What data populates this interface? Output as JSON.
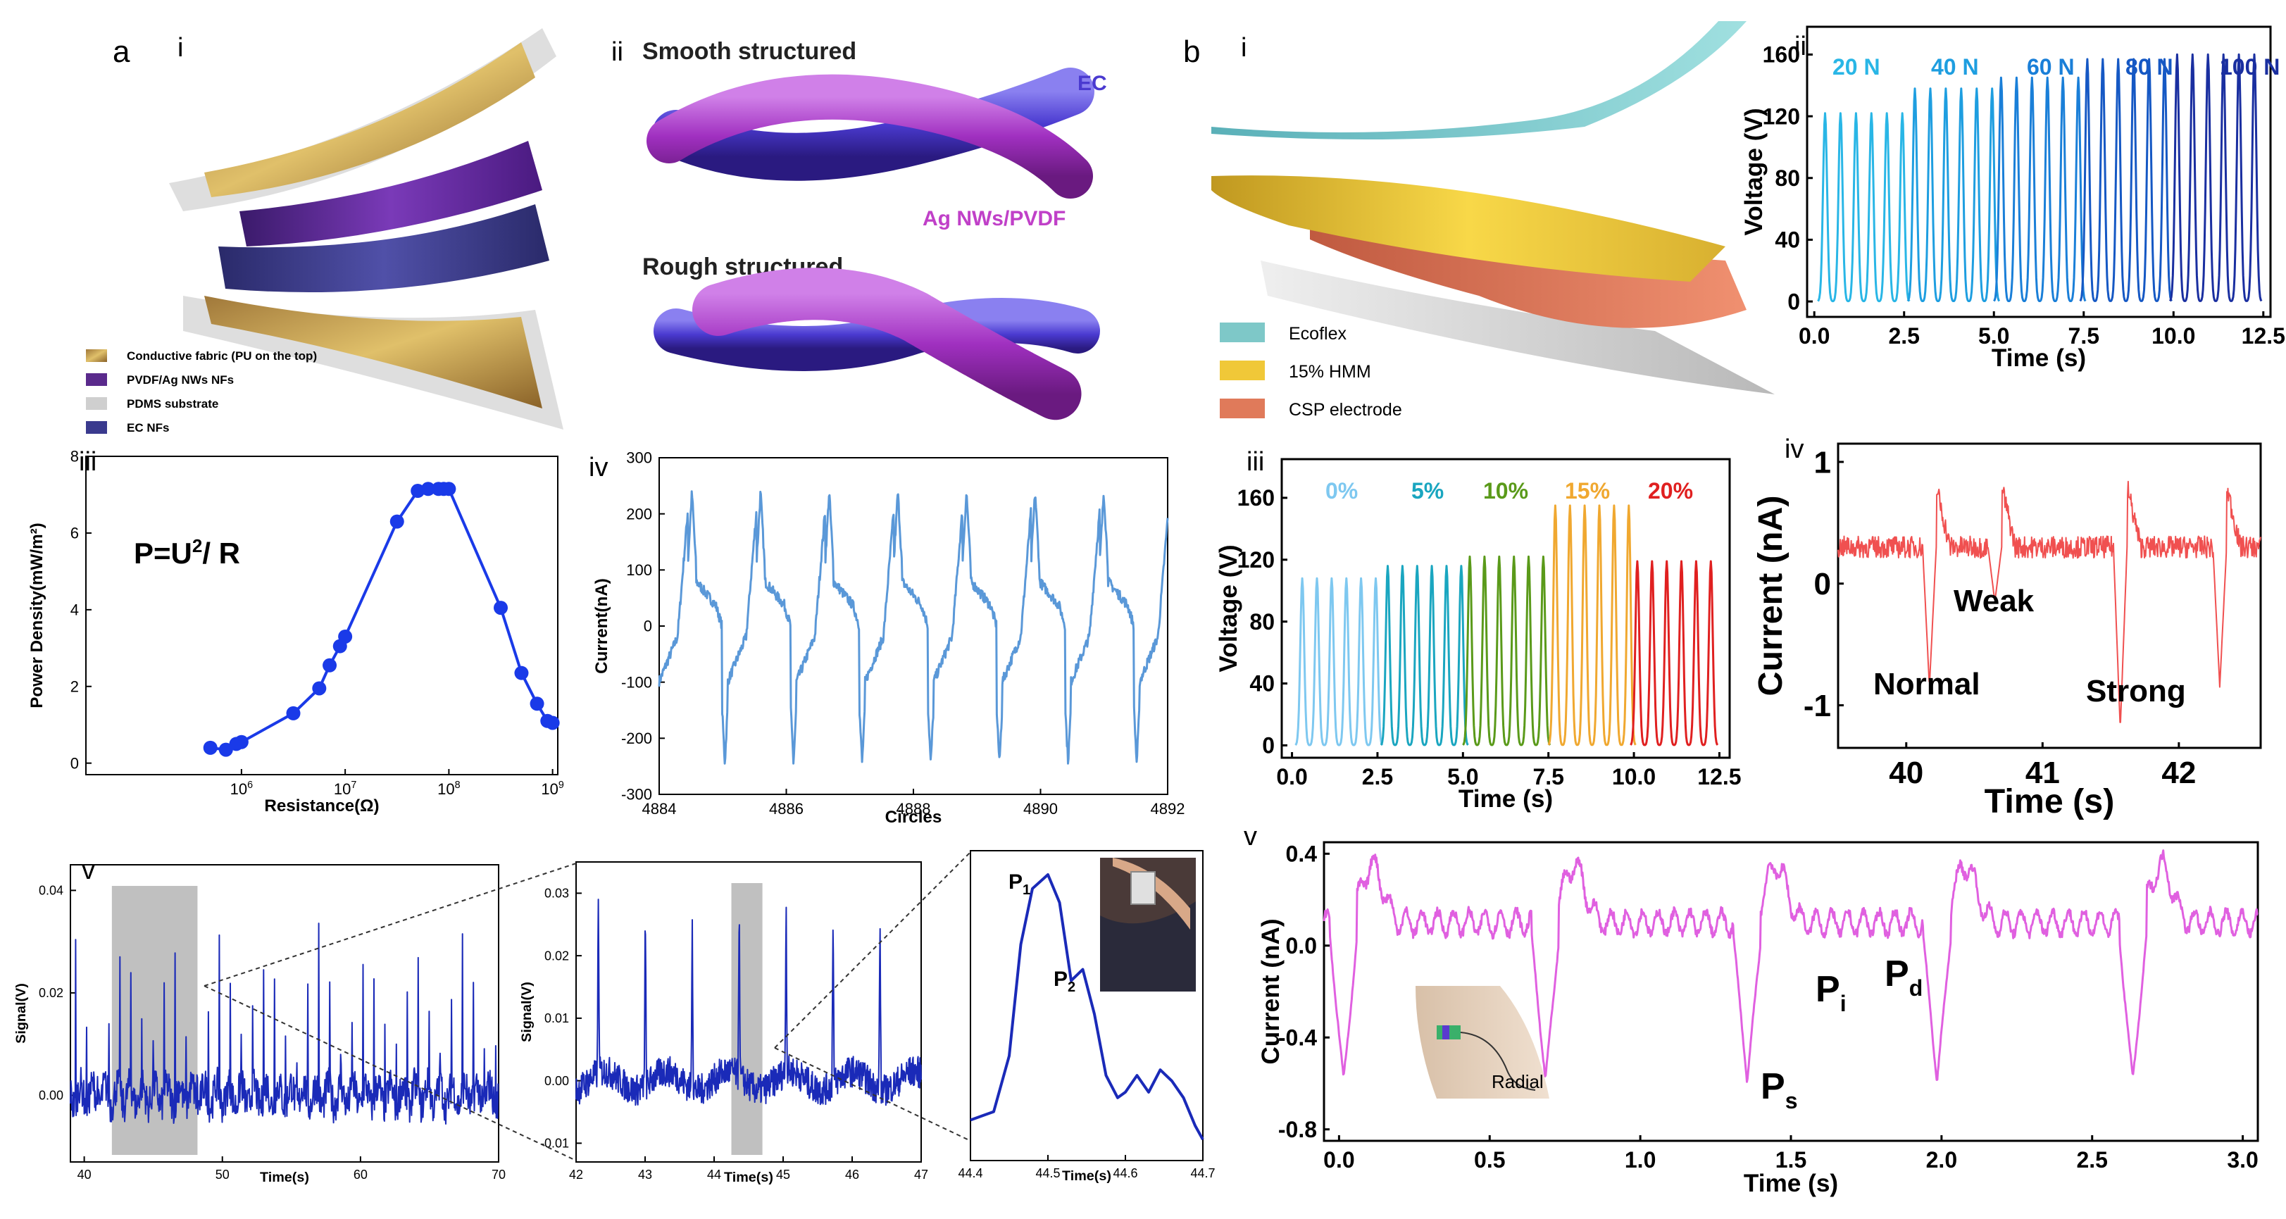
{
  "panel_a": {
    "letter": "a",
    "i": {
      "label": "i",
      "legend": [
        "Conductive fabric (PU on the top)",
        "PVDF/Ag NWs NFs",
        "PDMS substrate",
        "EC NFs"
      ],
      "colors": {
        "fabric": "#c99a3c",
        "pvdf": "#5a2a8c",
        "pdms": "#cfcfcf",
        "ec": "#3a3a8e"
      }
    },
    "ii": {
      "label": "ii",
      "smooth": "Smooth structured",
      "rough": "Rough structured",
      "ec": "EC",
      "agnw": "Ag NWs/PVDF",
      "colors": {
        "ec": "#4a3ad0",
        "agnw": "#b040c8"
      }
    },
    "iii": {
      "label": "iii",
      "formula": "P=U",
      "formula_sup": "2",
      "formula_tail": "/ R"
    },
    "iv": {
      "label": "iv"
    },
    "v": {
      "label": "v",
      "p1": "P",
      "p1_sub": "1",
      "p2": "P",
      "p2_sub": "2",
      "photo_icon": "neck-sensor-photo"
    }
  },
  "panel_b": {
    "letter": "b",
    "i": {
      "label": "i",
      "legend": [
        "Ecoflex",
        "15% HMM",
        "CSP electrode"
      ],
      "colors": {
        "ecoflex": "#7ec8c8",
        "hmm": "#f0c838",
        "csp": "#e07a5a"
      }
    },
    "ii": {
      "label": "ii",
      "force_labels": [
        "20 N",
        "40 N",
        "60 N",
        "80 N",
        "100 N"
      ],
      "force_colors": [
        "#29b6e6",
        "#1e9ee0",
        "#1a7fd8",
        "#1558c4",
        "#1a2fa0"
      ]
    },
    "iii": {
      "label": "iii",
      "pct_labels": [
        "0%",
        "5%",
        "10%",
        "15%",
        "20%"
      ],
      "pct_colors": [
        "#7ec8f0",
        "#1aa6c0",
        "#5a9a1a",
        "#f0a830",
        "#e02020"
      ]
    },
    "iv": {
      "label": "iv",
      "weak": "Weak",
      "normal": "Normal",
      "strong": "Strong"
    },
    "v": {
      "label": "v",
      "ps": "P",
      "ps_sub": "s",
      "pi": "P",
      "pi_sub": "i",
      "pd": "P",
      "pd_sub": "d",
      "radial": "Radial"
    }
  },
  "chart_data": [
    {
      "id": "a_iii",
      "type": "scatter",
      "xlabel": "Resistance(Ω)",
      "ylabel": "Power Density(mW/m²)",
      "xscale": "log",
      "xlim": [
        4.5,
        9.05
      ],
      "ylim": [
        -0.3,
        8
      ],
      "xticks": [
        {
          "v": 6,
          "base": "10",
          "exp": "6"
        },
        {
          "v": 7,
          "base": "10",
          "exp": "7"
        },
        {
          "v": 8,
          "base": "10",
          "exp": "8"
        },
        {
          "v": 9,
          "base": "10",
          "exp": "9"
        }
      ],
      "yticks": [
        0,
        2,
        4,
        6,
        8
      ],
      "series": [
        {
          "color": "#1a3ae8",
          "x": [
            5.7,
            5.85,
            5.95,
            6.0,
            6.5,
            6.75,
            6.85,
            6.95,
            7.0,
            7.5,
            7.7,
            7.8,
            7.9,
            7.95,
            8.0,
            8.5,
            8.7,
            8.85,
            8.95,
            9.0
          ],
          "y": [
            0.4,
            0.35,
            0.5,
            0.55,
            1.3,
            1.95,
            2.55,
            3.05,
            3.3,
            6.3,
            7.1,
            7.15,
            7.15,
            7.15,
            7.15,
            4.05,
            2.35,
            1.55,
            1.1,
            1.05
          ]
        }
      ]
    },
    {
      "id": "a_iv",
      "type": "line",
      "xlabel": "Circles",
      "ylabel": "Current(nA)",
      "xlim": [
        4884,
        4892
      ],
      "ylim": [
        -300,
        300
      ],
      "xticks": [
        4884,
        4886,
        4888,
        4890,
        4892
      ],
      "yticks": [
        -300,
        -200,
        -100,
        0,
        100,
        200,
        300
      ],
      "period": 1.08,
      "peak": 240,
      "trough": -245,
      "color": "#5a98d8"
    },
    {
      "id": "a_v_1",
      "type": "line",
      "xlabel": "Time(s)",
      "ylabel": "Signal(V)",
      "xlim": [
        39,
        70
      ],
      "ylim": [
        -0.013,
        0.045
      ],
      "xticks": [
        40,
        50,
        60,
        70
      ],
      "yticks": [
        0,
        0.02,
        0.04
      ],
      "ytick_labels": [
        "0.00",
        "0.02",
        "0.04"
      ],
      "period": 0.8,
      "peak": 0.032,
      "base": 0.0,
      "color": "#1a2ab8",
      "highlight": [
        42,
        48.2
      ]
    },
    {
      "id": "a_v_2",
      "type": "line",
      "xlabel": "Time(s)",
      "ylabel": "Signal(V)",
      "xlim": [
        42,
        47
      ],
      "ylim": [
        -0.013,
        0.035
      ],
      "xticks": [
        42,
        43,
        44,
        45,
        46,
        47
      ],
      "yticks": [
        -0.01,
        0,
        0.01,
        0.02,
        0.03
      ],
      "ytick_labels": [
        "-0.01",
        "0.00",
        "0.01",
        "0.02",
        "0.03"
      ],
      "period": 0.68,
      "peak": 0.028,
      "base": 0.0,
      "color": "#1a2ab8",
      "highlight": [
        44.25,
        44.7
      ]
    },
    {
      "id": "a_v_3",
      "type": "line",
      "xlabel": "Time(s)",
      "xlim": [
        44.4,
        44.7
      ],
      "xticks": [
        44.4,
        44.5,
        44.6,
        44.7
      ],
      "color": "#1a2ab8",
      "x": [
        44.4,
        44.43,
        44.45,
        44.465,
        44.48,
        44.5,
        44.515,
        44.53,
        44.545,
        44.56,
        44.575,
        44.59,
        44.6,
        44.615,
        44.63,
        44.645,
        44.66,
        44.675,
        44.69,
        44.7
      ],
      "y": [
        0.12,
        0.15,
        0.35,
        0.75,
        0.95,
        1.0,
        0.9,
        0.62,
        0.66,
        0.5,
        0.28,
        0.2,
        0.22,
        0.28,
        0.22,
        0.3,
        0.26,
        0.2,
        0.1,
        0.05
      ]
    },
    {
      "id": "b_ii",
      "type": "line",
      "xlabel": "Time (s)",
      "ylabel": "Voltage (V)",
      "xlim": [
        -0.2,
        12.7
      ],
      "ylim": [
        -10,
        178
      ],
      "xticks": [
        0,
        2.5,
        5,
        7.5,
        10,
        12.5
      ],
      "xtick_labels": [
        "0.0",
        "2.5",
        "5.0",
        "7.5",
        "10.0",
        "12.5"
      ],
      "yticks": [
        0,
        40,
        80,
        120,
        160
      ],
      "groups": [
        {
          "start": 0.3,
          "peak": 122
        },
        {
          "start": 2.8,
          "peak": 138
        },
        {
          "start": 5.2,
          "peak": 145
        },
        {
          "start": 7.6,
          "peak": 157
        },
        {
          "start": 10.1,
          "peak": 160
        }
      ],
      "pulse_spacing": 0.43,
      "pulses_per_group": 6
    },
    {
      "id": "b_iii",
      "type": "line",
      "xlabel": "Time (s)",
      "ylabel": "Voltage (V)",
      "xlim": [
        -0.3,
        12.8
      ],
      "ylim": [
        -8,
        185
      ],
      "xticks": [
        0,
        2.5,
        5,
        7.5,
        10,
        12.5
      ],
      "xtick_labels": [
        "0.0",
        "2.5",
        "5.0",
        "7.5",
        "10.0",
        "12.5"
      ],
      "yticks": [
        0,
        40,
        80,
        120,
        160
      ],
      "groups": [
        {
          "start": 0.3,
          "peak": 108
        },
        {
          "start": 2.8,
          "peak": 116
        },
        {
          "start": 5.2,
          "peak": 122
        },
        {
          "start": 7.7,
          "peak": 155
        },
        {
          "start": 10.1,
          "peak": 119
        }
      ],
      "pulse_spacing": 0.43,
      "pulses_per_group": 6
    },
    {
      "id": "b_iv",
      "type": "line",
      "xlabel": "Time (s)",
      "ylabel": "Current (nA)",
      "xlim": [
        39.5,
        42.6
      ],
      "ylim": [
        -1.35,
        1.15
      ],
      "xticks": [
        40,
        41,
        42
      ],
      "yticks": [
        -1,
        0,
        1
      ],
      "color": "#f05050",
      "events": [
        {
          "t": 40.17,
          "depth": -0.85
        },
        {
          "t": 40.65,
          "depth": -0.15
        },
        {
          "t": 41.57,
          "depth": -1.2
        },
        {
          "t": 42.3,
          "depth": -0.85
        }
      ]
    },
    {
      "id": "b_v",
      "type": "line",
      "xlabel": "Time (s)",
      "ylabel": "Current (nA)",
      "xlim": [
        -0.05,
        3.05
      ],
      "ylim": [
        -0.85,
        0.45
      ],
      "xticks": [
        0,
        0.5,
        1,
        1.5,
        2,
        2.5,
        3
      ],
      "xtick_labels": [
        "0.0",
        "0.5",
        "1.0",
        "1.5",
        "2.0",
        "2.5",
        "3.0"
      ],
      "yticks": [
        -0.8,
        -0.4,
        0,
        0.4
      ],
      "ytick_labels": [
        "-0.8",
        "-0.4",
        "0.0",
        "0.4"
      ],
      "color": "#e060e0",
      "beats": [
        0.03,
        0.7,
        1.37,
        2.0,
        2.65
      ],
      "beat_depth": -0.62
    }
  ]
}
